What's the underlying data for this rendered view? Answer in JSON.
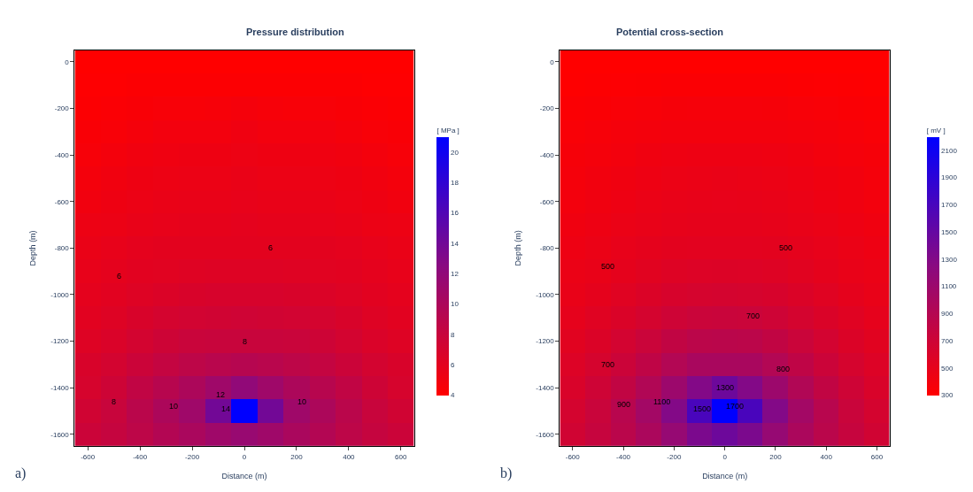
{
  "chart_data": [
    {
      "type": "heatmap",
      "title": "Pressure distribution",
      "xlabel": "Distance (m)",
      "ylabel": "Depth (m)",
      "clabel": "[ MPa ]",
      "categories": [
        "-600",
        null,
        "-400",
        null,
        "-200",
        null,
        "0",
        null,
        "200",
        null,
        "400",
        null,
        "600"
      ],
      "y_categories": [
        "0",
        null,
        "-200",
        null,
        "-400",
        null,
        "-600",
        null,
        "-800",
        null,
        "-1000",
        null,
        "-1200",
        null,
        "-1400",
        null,
        "-1600"
      ],
      "cells": [
        [
          4.0,
          4.0,
          4.0,
          4.0,
          4.0,
          4.0,
          4.0,
          4.0,
          4.0,
          4.0,
          4.0,
          4.0,
          4.0
        ],
        [
          4.1,
          4.1,
          4.2,
          4.2,
          4.2,
          4.2,
          4.2,
          4.2,
          4.2,
          4.2,
          4.2,
          4.1,
          4.1
        ],
        [
          4.2,
          4.3,
          4.4,
          4.5,
          4.5,
          4.6,
          4.7,
          4.6,
          4.5,
          4.5,
          4.4,
          4.3,
          4.2
        ],
        [
          4.4,
          4.5,
          4.7,
          4.9,
          4.9,
          4.9,
          5.1,
          4.9,
          4.9,
          4.9,
          4.7,
          4.5,
          4.4
        ],
        [
          4.6,
          4.8,
          5.0,
          5.1,
          5.2,
          5.2,
          5.3,
          5.2,
          5.2,
          5.1,
          5.0,
          4.8,
          4.6
        ],
        [
          4.8,
          5.0,
          5.2,
          5.3,
          5.4,
          5.4,
          5.5,
          5.4,
          5.4,
          5.3,
          5.2,
          5.0,
          4.8
        ],
        [
          5.0,
          5.2,
          5.4,
          5.5,
          5.6,
          5.6,
          5.7,
          5.6,
          5.6,
          5.5,
          5.4,
          5.2,
          5.0
        ],
        [
          5.3,
          5.4,
          5.6,
          5.7,
          5.8,
          5.8,
          5.9,
          5.8,
          5.8,
          5.7,
          5.6,
          5.4,
          5.3
        ],
        [
          5.5,
          5.7,
          5.9,
          6.0,
          6.0,
          6.0,
          6.0,
          6.0,
          6.0,
          6.0,
          5.9,
          5.7,
          5.5
        ],
        [
          5.7,
          5.9,
          6.1,
          6.2,
          6.3,
          6.4,
          6.4,
          6.4,
          6.3,
          6.2,
          6.1,
          5.9,
          5.7
        ],
        [
          5.9,
          6.1,
          6.4,
          6.6,
          6.8,
          6.9,
          6.9,
          6.9,
          6.8,
          6.6,
          6.4,
          6.1,
          5.9
        ],
        [
          6.1,
          6.4,
          6.8,
          7.1,
          7.3,
          7.4,
          7.5,
          7.4,
          7.3,
          7.1,
          6.8,
          6.4,
          6.1
        ],
        [
          6.4,
          6.7,
          7.2,
          7.6,
          7.9,
          8.0,
          8.0,
          8.0,
          7.9,
          7.6,
          7.2,
          6.7,
          6.4
        ],
        [
          6.8,
          7.2,
          7.8,
          8.3,
          8.8,
          9.1,
          9.3,
          9.1,
          8.8,
          8.3,
          7.8,
          7.2,
          6.8
        ],
        [
          7.0,
          7.6,
          8.5,
          9.2,
          10.0,
          11.0,
          12.0,
          11.0,
          10.0,
          9.2,
          8.5,
          7.6,
          7.0
        ],
        [
          7.4,
          8.0,
          9.0,
          10.0,
          11.0,
          14.0,
          21.0,
          14.0,
          11.0,
          10.0,
          9.0,
          8.0,
          7.4
        ],
        [
          7.8,
          8.2,
          8.8,
          9.5,
          10.2,
          11.0,
          11.5,
          11.0,
          10.2,
          9.5,
          8.8,
          8.2,
          7.8
        ]
      ],
      "clim": [
        4,
        21
      ],
      "cticks": [
        4,
        6,
        8,
        10,
        12,
        14,
        16,
        18,
        20
      ],
      "annotations": [
        "a)",
        "6",
        "6",
        "8",
        "8",
        "10",
        "10",
        "12",
        "14"
      ]
    },
    {
      "type": "heatmap",
      "title": "Potential cross-section",
      "xlabel": "Distance (m)",
      "ylabel": "Depth (m)",
      "clabel": "[ mV ]",
      "categories": [
        "-600",
        null,
        "-400",
        null,
        "-200",
        null,
        "0",
        null,
        "200",
        null,
        "400",
        null,
        "600"
      ],
      "y_categories": [
        "0",
        null,
        "-200",
        null,
        "-400",
        null,
        "-600",
        null,
        "-800",
        null,
        "-1000",
        null,
        "-1200",
        null,
        "-1400",
        null,
        "-1600"
      ],
      "cells": [
        [
          300,
          300,
          300,
          300,
          300,
          300,
          300,
          300,
          300,
          300,
          300,
          300,
          300
        ],
        [
          310,
          315,
          320,
          325,
          330,
          330,
          330,
          330,
          330,
          325,
          320,
          315,
          310
        ],
        [
          330,
          340,
          350,
          360,
          370,
          375,
          375,
          375,
          370,
          360,
          350,
          340,
          330
        ],
        [
          350,
          365,
          380,
          390,
          400,
          400,
          400,
          400,
          400,
          390,
          380,
          365,
          350
        ],
        [
          370,
          385,
          400,
          420,
          430,
          440,
          440,
          440,
          430,
          420,
          400,
          385,
          370
        ],
        [
          385,
          405,
          420,
          440,
          455,
          465,
          470,
          465,
          455,
          440,
          420,
          405,
          385
        ],
        [
          400,
          420,
          440,
          460,
          475,
          485,
          490,
          485,
          475,
          460,
          440,
          420,
          400
        ],
        [
          420,
          440,
          460,
          480,
          495,
          500,
          500,
          500,
          495,
          480,
          460,
          440,
          420
        ],
        [
          440,
          460,
          490,
          510,
          525,
          530,
          530,
          530,
          525,
          510,
          490,
          460,
          440
        ],
        [
          460,
          480,
          510,
          540,
          565,
          580,
          585,
          580,
          565,
          540,
          510,
          480,
          460
        ],
        [
          475,
          510,
          550,
          590,
          625,
          645,
          650,
          645,
          625,
          590,
          550,
          510,
          475
        ],
        [
          505,
          550,
          600,
          650,
          700,
          730,
          740,
          730,
          700,
          650,
          600,
          550,
          505
        ],
        [
          540,
          590,
          660,
          730,
          800,
          850,
          860,
          850,
          800,
          730,
          660,
          590,
          540
        ],
        [
          580,
          640,
          720,
          820,
          920,
          1000,
          1000,
          1000,
          920,
          820,
          720,
          640,
          580
        ],
        [
          610,
          700,
          800,
          930,
          1100,
          1300,
          1450,
          1300,
          1100,
          930,
          800,
          700,
          610
        ],
        [
          650,
          740,
          880,
          1050,
          1300,
          1700,
          2200,
          1700,
          1300,
          1050,
          880,
          740,
          650
        ],
        [
          680,
          760,
          860,
          980,
          1150,
          1350,
          1450,
          1350,
          1150,
          980,
          860,
          760,
          680
        ]
      ],
      "clim": [
        300,
        2200
      ],
      "cticks": [
        300,
        500,
        700,
        900,
        1100,
        1300,
        1500,
        1700,
        1900,
        2100
      ],
      "annotations": [
        "b)",
        "500",
        "500",
        "700",
        "700",
        "800",
        "900",
        "1100",
        "1300",
        "1500",
        "1700"
      ]
    }
  ]
}
